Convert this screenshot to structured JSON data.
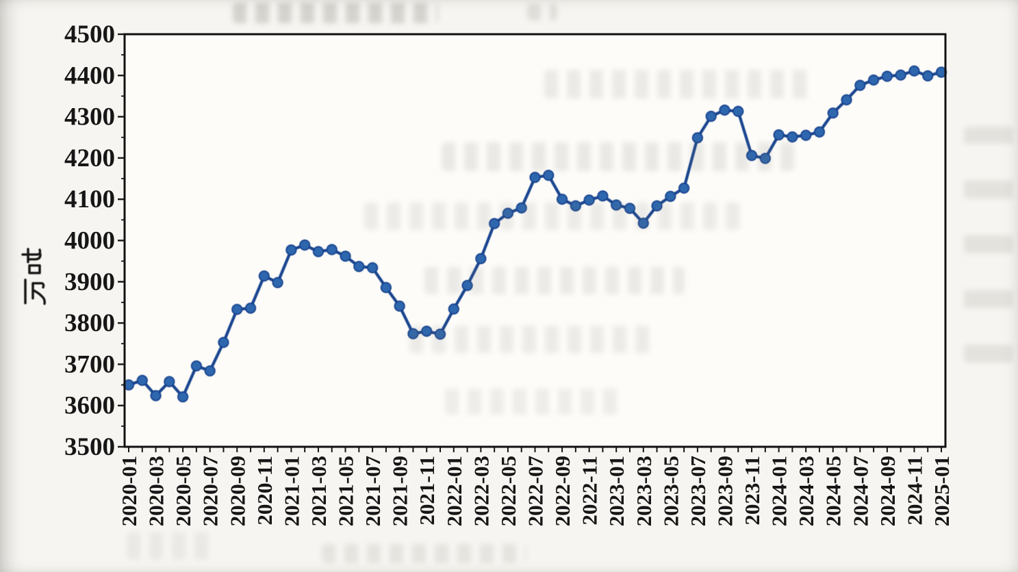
{
  "page": {
    "kind": "scanned book figure",
    "ink_color": "#161616",
    "paper_color": "#f7f5f1"
  },
  "chart_data": {
    "type": "line",
    "title": "",
    "xlabel": "",
    "ylabel": "万吨",
    "ylim": [
      3500,
      4500
    ],
    "ytick_step": 100,
    "ytick_minor_step": 50,
    "xtick_label_every": 2,
    "grid": false,
    "legend": "none",
    "line_color": "#1a458f",
    "marker_color": "#2e67ae",
    "marker_edge_color": "#16418c",
    "x": [
      "2020-01",
      "2020-02",
      "2020-03",
      "2020-04",
      "2020-05",
      "2020-06",
      "2020-07",
      "2020-08",
      "2020-09",
      "2020-10",
      "2020-11",
      "2020-12",
      "2021-01",
      "2021-02",
      "2021-03",
      "2021-04",
      "2021-05",
      "2021-06",
      "2021-07",
      "2021-08",
      "2021-09",
      "2021-10",
      "2021-11",
      "2021-12",
      "2022-01",
      "2022-02",
      "2022-03",
      "2022-04",
      "2022-05",
      "2022-06",
      "2022-07",
      "2022-08",
      "2022-09",
      "2022-10",
      "2022-11",
      "2022-12",
      "2023-01",
      "2023-02",
      "2023-03",
      "2023-04",
      "2023-05",
      "2023-06",
      "2023-07",
      "2023-08",
      "2023-09",
      "2023-10",
      "2023-11",
      "2023-12",
      "2024-01",
      "2024-02",
      "2024-03",
      "2024-04",
      "2024-05",
      "2024-06",
      "2024-07",
      "2024-08",
      "2024-09",
      "2024-10",
      "2024-11",
      "2024-12",
      "2025-01"
    ],
    "values": [
      3650,
      3661,
      3624,
      3658,
      3621,
      3696,
      3684,
      3753,
      3833,
      3836,
      3914,
      3898,
      3977,
      3989,
      3973,
      3978,
      3962,
      3937,
      3934,
      3886,
      3841,
      3774,
      3780,
      3773,
      3834,
      3891,
      3956,
      4041,
      4066,
      4079,
      4153,
      4158,
      4100,
      4084,
      4098,
      4108,
      4086,
      4078,
      4042,
      4084,
      4107,
      4127,
      4249,
      4301,
      4316,
      4313,
      4206,
      4199,
      4256,
      4251,
      4255,
      4263,
      4309,
      4341,
      4376,
      4389,
      4398,
      4401,
      4411,
      4399,
      4408
    ]
  }
}
